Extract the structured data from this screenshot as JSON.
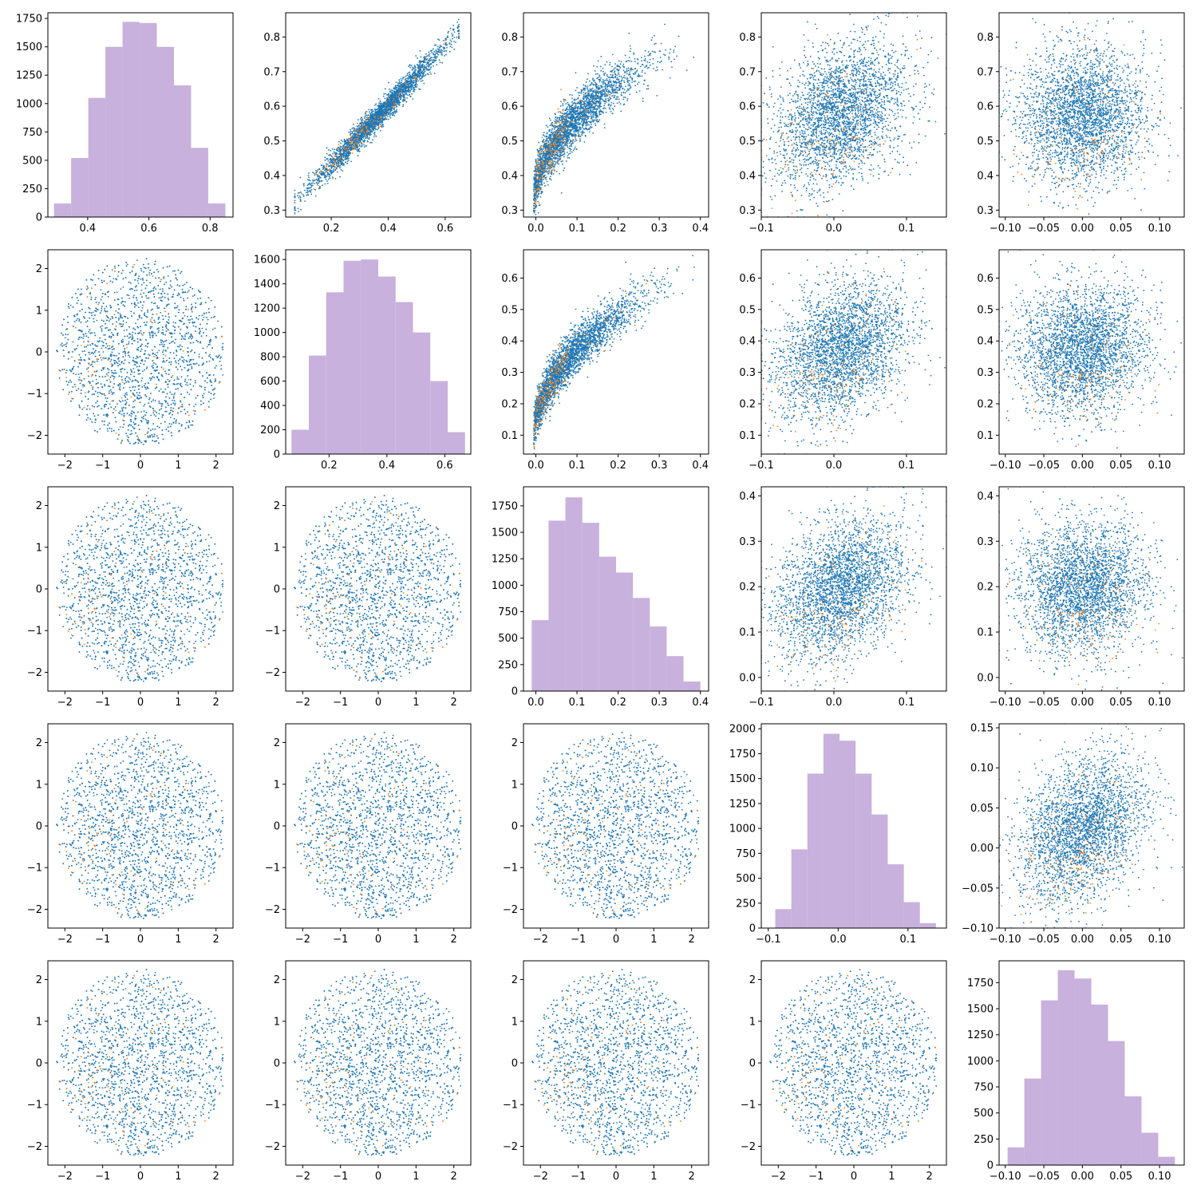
{
  "figure": {
    "description_free": true,
    "grid_rows": 5,
    "grid_cols": 5
  },
  "colors": {
    "series_main": "#1f77b4",
    "series_highlight": "#ff7f0e",
    "histogram": "#c8b1dc"
  },
  "chart_data": {
    "type": "pairplot",
    "variables": [
      {
        "index": 0,
        "lim": [
          0.27,
          0.875
        ],
        "ticks": [
          0.4,
          0.6,
          0.8
        ],
        "tick_labels": [
          "0.4",
          "0.6",
          "0.8"
        ],
        "scatter_ticks": [
          0.3,
          0.4,
          0.5,
          0.6,
          0.7,
          0.8
        ],
        "scatter_tick_labels": [
          "0.3",
          "0.4",
          "0.5",
          "0.6",
          "0.7",
          "0.8"
        ],
        "scatter_lim": [
          0.28,
          0.87
        ],
        "hist_edges": [
          0.29,
          0.346,
          0.402,
          0.458,
          0.514,
          0.57,
          0.626,
          0.682,
          0.738,
          0.794,
          0.85
        ],
        "hist_counts": [
          120,
          520,
          1050,
          1500,
          1720,
          1710,
          1500,
          1160,
          610,
          120
        ],
        "hist_ylim": [
          0,
          1800
        ],
        "hist_yticks": [
          0,
          250,
          500,
          750,
          1000,
          1250,
          1500,
          1750
        ],
        "hist_ytick_labels": [
          "0",
          "250",
          "500",
          "750",
          "1000",
          "1250",
          "1500",
          "1750"
        ]
      },
      {
        "index": 1,
        "lim": [
          0.05,
          0.69
        ],
        "ticks": [
          0.2,
          0.4,
          0.6
        ],
        "tick_labels": [
          "0.2",
          "0.4",
          "0.6"
        ],
        "scatter_ticks": [
          0.1,
          0.2,
          0.3,
          0.4,
          0.5,
          0.6
        ],
        "scatter_tick_labels": [
          "0.1",
          "0.2",
          "0.3",
          "0.4",
          "0.5",
          "0.6"
        ],
        "scatter_lim": [
          0.04,
          0.69
        ],
        "hist_edges": [
          0.07,
          0.13,
          0.19,
          0.25,
          0.31,
          0.37,
          0.43,
          0.49,
          0.55,
          0.61,
          0.67
        ],
        "hist_counts": [
          200,
          810,
          1330,
          1590,
          1600,
          1460,
          1250,
          1000,
          600,
          180
        ],
        "hist_ylim": [
          0,
          1680
        ],
        "hist_yticks": [
          0,
          200,
          400,
          600,
          800,
          1000,
          1200,
          1400,
          1600
        ],
        "hist_ytick_labels": [
          "0",
          "200",
          "400",
          "600",
          "800",
          "1000",
          "1200",
          "1400",
          "1600"
        ]
      },
      {
        "index": 2,
        "lim": [
          -0.03,
          0.42
        ],
        "ticks": [
          0.0,
          0.1,
          0.2,
          0.3,
          0.4
        ],
        "tick_labels": [
          "0.0",
          "0.1",
          "0.2",
          "0.3",
          "0.4"
        ],
        "scatter_ticks": [
          0.0,
          0.1,
          0.2,
          0.3,
          0.4
        ],
        "scatter_tick_labels": [
          "0.0",
          "0.1",
          "0.2",
          "0.3",
          "0.4"
        ],
        "scatter_lim": [
          -0.03,
          0.42
        ],
        "hist_edges": [
          -0.01,
          0.031,
          0.072,
          0.113,
          0.154,
          0.195,
          0.236,
          0.277,
          0.318,
          0.359,
          0.4
        ],
        "hist_counts": [
          670,
          1610,
          1830,
          1590,
          1270,
          1120,
          880,
          610,
          330,
          90
        ],
        "hist_ylim": [
          0,
          1930
        ],
        "hist_yticks": [
          0,
          250,
          500,
          750,
          1000,
          1250,
          1500,
          1750
        ],
        "hist_ytick_labels": [
          "0",
          "250",
          "500",
          "750",
          "1000",
          "1250",
          "1500",
          "1750"
        ]
      },
      {
        "index": 3,
        "lim": [
          -0.11,
          0.155
        ],
        "ticks": [
          -0.1,
          0.0,
          0.1
        ],
        "tick_labels": [
          "−0.1",
          "0.0",
          "0.1"
        ],
        "scatter_ticks": [
          -0.1,
          -0.05,
          0.0,
          0.05,
          0.1,
          0.15
        ],
        "scatter_tick_labels": [
          "−0.10",
          "−0.05",
          "0.00",
          "0.05",
          "0.10",
          "0.15"
        ],
        "scatter_lim": [
          -0.1,
          0.155
        ],
        "hist_edges": [
          -0.09,
          -0.067,
          -0.044,
          -0.021,
          0.002,
          0.025,
          0.048,
          0.071,
          0.094,
          0.117,
          0.14
        ],
        "hist_counts": [
          190,
          790,
          1550,
          1950,
          1880,
          1550,
          1140,
          640,
          260,
          50
        ],
        "hist_ylim": [
          0,
          2050
        ],
        "hist_yticks": [
          0,
          250,
          500,
          750,
          1000,
          1250,
          1500,
          1750,
          2000
        ],
        "hist_ytick_labels": [
          "0",
          "250",
          "500",
          "750",
          "1000",
          "1250",
          "1500",
          "1750",
          "2000"
        ]
      },
      {
        "index": 4,
        "lim": [
          -0.108,
          0.132
        ],
        "ticks": [
          -0.1,
          -0.05,
          0.0,
          0.05,
          0.1
        ],
        "tick_labels": [
          "−0.10",
          "−0.05",
          "0.00",
          "0.05",
          "0.10"
        ],
        "scatter_ticks": [
          -0.1,
          -0.05,
          0.0,
          0.05,
          0.1
        ],
        "scatter_tick_labels": [
          "−0.10",
          "−0.05",
          "0.00",
          "0.05",
          "0.10"
        ],
        "scatter_lim": [
          -0.108,
          0.132
        ],
        "hist_edges": [
          -0.097,
          -0.0753,
          -0.0536,
          -0.0319,
          -0.0102,
          0.0115,
          0.0332,
          0.0549,
          0.0766,
          0.0983,
          0.12
        ],
        "hist_counts": [
          170,
          830,
          1580,
          1870,
          1790,
          1540,
          1190,
          660,
          310,
          80
        ],
        "hist_ylim": [
          0,
          1960
        ],
        "hist_yticks": [
          0,
          250,
          500,
          750,
          1000,
          1250,
          1500,
          1750
        ],
        "hist_ytick_labels": [
          "0",
          "250",
          "500",
          "750",
          "1000",
          "1250",
          "1500",
          "1750"
        ]
      }
    ],
    "normal_axis": {
      "lim": [
        -2.45,
        2.45
      ],
      "ticks": [
        -2,
        -1,
        0,
        1,
        2
      ],
      "tick_labels": [
        "−2",
        "−1",
        "0",
        "1",
        "2"
      ]
    },
    "upper_panels": [
      {
        "row": 0,
        "col": 1,
        "x_var": 1,
        "y_var": 0,
        "shape": "linear_tight"
      },
      {
        "row": 0,
        "col": 2,
        "x_var": 2,
        "y_var": 0,
        "shape": "sqrt_curve"
      },
      {
        "row": 0,
        "col": 3,
        "x_var": 3,
        "y_var": 0,
        "shape": "blob"
      },
      {
        "row": 0,
        "col": 4,
        "x_var": 4,
        "y_var": 0,
        "shape": "blob_v"
      },
      {
        "row": 1,
        "col": 2,
        "x_var": 2,
        "y_var": 1,
        "shape": "sqrt_curve"
      },
      {
        "row": 1,
        "col": 3,
        "x_var": 3,
        "y_var": 1,
        "shape": "blob"
      },
      {
        "row": 1,
        "col": 4,
        "x_var": 4,
        "y_var": 1,
        "shape": "blob_v"
      },
      {
        "row": 2,
        "col": 3,
        "x_var": 3,
        "y_var": 2,
        "shape": "blob"
      },
      {
        "row": 2,
        "col": 4,
        "x_var": 4,
        "y_var": 2,
        "shape": "blob_v"
      },
      {
        "row": 3,
        "col": 4,
        "x_var": 4,
        "y_var": 3,
        "shape": "blob"
      }
    ],
    "lower_panels": "standard_normal_disc",
    "points_per_panel": 3000,
    "highlight_fraction": 0.06
  }
}
